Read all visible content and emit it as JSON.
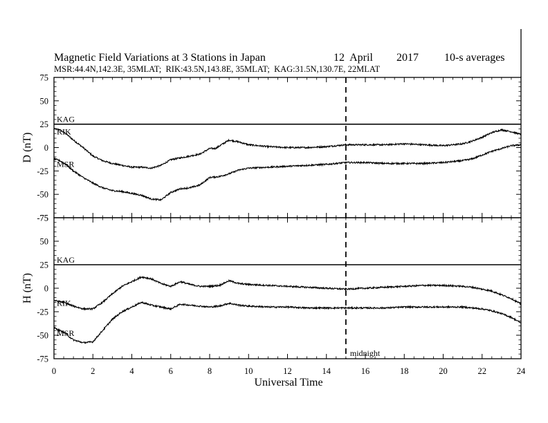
{
  "chart_data": {
    "type": "line",
    "title": "Magnetic Field Variations at 3 Stations in Japan",
    "date": "12  April",
    "year": "2017",
    "averaging": "10-s averages",
    "subtitle": "MSR:44.4N,142.3E, 35MLAT;  RIK:43.5N,143.8E, 35MLAT;  KAG:31.5N,130.7E, 22MLAT",
    "xlabel": "Universal Time",
    "xlim": [
      0,
      24
    ],
    "xticks": [
      "0",
      "2",
      "4",
      "6",
      "8",
      "10",
      "12",
      "14",
      "16",
      "18",
      "20",
      "22",
      "24"
    ],
    "marker": {
      "x": 15,
      "label": "midnight"
    },
    "panels": [
      {
        "ylabel": "D (nT)",
        "ylim": [
          -75,
          75
        ],
        "yticks": [
          "75",
          "50",
          "25",
          "0",
          "-25",
          "-50",
          "-75"
        ],
        "series": [
          {
            "name": "KAG",
            "x": [
              0,
              24
            ],
            "values": [
              25,
              25
            ]
          },
          {
            "name": "RIK",
            "x": [
              0,
              0.3,
              0.6,
              1,
              1.5,
              2,
              2.5,
              3,
              3.5,
              4,
              4.5,
              5,
              5.5,
              6,
              6.5,
              7,
              7.5,
              8,
              8.3,
              8.6,
              9,
              9.5,
              10,
              11,
              12,
              13,
              14,
              15,
              16,
              17,
              18,
              19,
              20,
              21,
              21.5,
              22,
              22.5,
              23,
              23.5,
              24
            ],
            "values": [
              20,
              19,
              15,
              8,
              0,
              -9,
              -14,
              -17,
              -19,
              -21,
              -21,
              -22,
              -19,
              -13,
              -11,
              -9,
              -7,
              -1,
              -1,
              3,
              8,
              6,
              3,
              1,
              0,
              0,
              1,
              3,
              3,
              3,
              4,
              3,
              2,
              4,
              7,
              11,
              16,
              19,
              17,
              14
            ]
          },
          {
            "name": "MSR",
            "x": [
              0,
              0.3,
              0.6,
              1,
              1.5,
              2,
              2.5,
              3,
              3.5,
              4,
              4.5,
              5,
              5.5,
              6,
              6.5,
              7,
              7.5,
              8,
              8.5,
              9,
              9.5,
              10,
              11,
              12,
              13,
              14,
              15,
              16,
              17,
              18,
              19,
              20,
              21,
              21.5,
              22,
              22.5,
              23,
              23.5,
              24
            ],
            "values": [
              -12,
              -14,
              -18,
              -25,
              -32,
              -38,
              -43,
              -46,
              -47,
              -49,
              -51,
              -55,
              -56,
              -48,
              -44,
              -43,
              -40,
              -32,
              -31,
              -28,
              -24,
              -22,
              -21,
              -20,
              -19,
              -18,
              -16,
              -16,
              -17,
              -17,
              -17,
              -16,
              -14,
              -12,
              -8,
              -4,
              -1,
              2,
              3
            ]
          }
        ]
      },
      {
        "ylabel": "H (nT)",
        "ylim": [
          -75,
          75
        ],
        "yticks": [
          "75",
          "50",
          "25",
          "0",
          "-25",
          "-50",
          "-75"
        ],
        "series": [
          {
            "name": "KAG",
            "x": [
              0,
              24
            ],
            "values": [
              25,
              25
            ]
          },
          {
            "name": "RIK",
            "x": [
              0,
              0.5,
              1,
              1.5,
              2,
              2.5,
              3,
              3.5,
              4,
              4.5,
              5,
              5.5,
              6,
              6.5,
              7,
              7.5,
              8,
              8.5,
              9,
              9.5,
              10,
              11,
              12,
              13,
              14,
              15,
              16,
              17,
              18,
              19,
              20,
              21,
              21.5,
              22,
              22.5,
              23,
              23.5,
              24
            ],
            "values": [
              -13,
              -15,
              -19,
              -22,
              -22,
              -15,
              -6,
              2,
              7,
              12,
              10,
              5,
              2,
              7,
              4,
              2,
              2,
              3,
              8,
              5,
              4,
              3,
              2,
              1,
              0,
              -1,
              0,
              1,
              2,
              3,
              3,
              2,
              1,
              -1,
              -3,
              -7,
              -11,
              -17
            ]
          },
          {
            "name": "MSR",
            "x": [
              0,
              0.5,
              1,
              1.5,
              2,
              2.5,
              3,
              3.5,
              4,
              4.5,
              5,
              5.5,
              6,
              6.5,
              7,
              7.5,
              8,
              8.5,
              9,
              9.5,
              10,
              11,
              12,
              13,
              14,
              15,
              16,
              17,
              18,
              19,
              20,
              21,
              21.5,
              22,
              22.5,
              23,
              23.5,
              24
            ],
            "values": [
              -42,
              -47,
              -55,
              -58,
              -57,
              -45,
              -33,
              -25,
              -20,
              -15,
              -18,
              -20,
              -22,
              -17,
              -18,
              -19,
              -20,
              -19,
              -16,
              -18,
              -19,
              -20,
              -20,
              -21,
              -21,
              -21,
              -21,
              -21,
              -20,
              -20,
              -20,
              -20,
              -21,
              -22,
              -24,
              -27,
              -31,
              -37
            ]
          }
        ]
      }
    ]
  }
}
